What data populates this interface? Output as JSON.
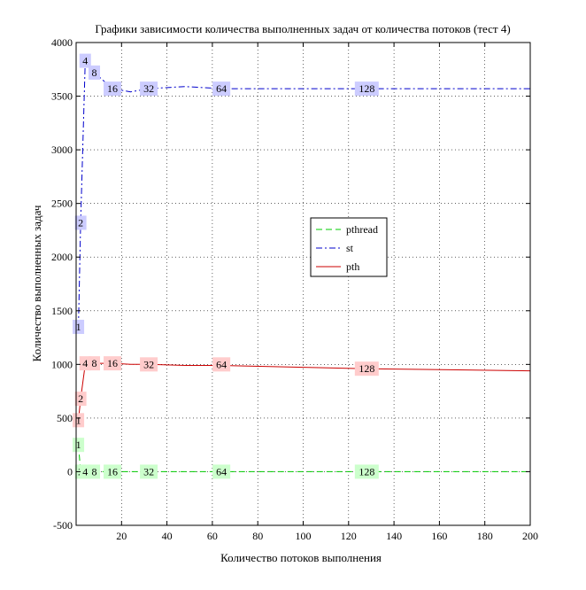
{
  "chart_data": {
    "type": "line",
    "title": "Графики зависимости количества выполненных задач от количества потоков (тест 4)",
    "xlabel": "Количество потоков выполнения",
    "ylabel": "Количество выполненных задач",
    "xlim": [
      0,
      200
    ],
    "ylim": [
      -500,
      4000
    ],
    "xticks": [
      20,
      40,
      60,
      80,
      100,
      120,
      140,
      160,
      180,
      200
    ],
    "yticks": [
      -500,
      0,
      500,
      1000,
      1500,
      2000,
      2500,
      3000,
      3500,
      4000
    ],
    "xtick_labels": [
      "20",
      "40",
      "60",
      "80",
      "100",
      "120",
      "140",
      "160",
      "180",
      "200"
    ],
    "ytick_labels": [
      "-500",
      "0",
      "500",
      "1000",
      "1500",
      "2000",
      "2500",
      "3000",
      "3500",
      "4000"
    ],
    "grid": true,
    "legend_position": "center-right",
    "series": [
      {
        "name": "pthread",
        "color": "#00cc00",
        "label_bg": "#ccffcc",
        "style": "dashed",
        "x": [
          1,
          2,
          4,
          8,
          16,
          32,
          64,
          128,
          200
        ],
        "y": [
          250,
          0,
          0,
          0,
          0,
          0,
          0,
          0,
          0
        ],
        "labels": [
          {
            "x": 1,
            "y": 250,
            "text": "1"
          },
          {
            "x": 2,
            "y": 0,
            "text": "2"
          },
          {
            "x": 4,
            "y": 0,
            "text": "4"
          },
          {
            "x": 8,
            "y": 0,
            "text": "8"
          },
          {
            "x": 16,
            "y": 0,
            "text": "16"
          },
          {
            "x": 32,
            "y": 0,
            "text": "32"
          },
          {
            "x": 64,
            "y": 0,
            "text": "64"
          },
          {
            "x": 128,
            "y": 0,
            "text": "128"
          }
        ]
      },
      {
        "name": "st",
        "color": "#0000cc",
        "label_bg": "#ccccff",
        "style": "dashdot",
        "x": [
          1,
          2,
          4,
          8,
          16,
          24,
          32,
          48,
          64,
          128,
          200
        ],
        "y": [
          1350,
          2320,
          3830,
          3720,
          3570,
          3540,
          3570,
          3590,
          3570,
          3570,
          3570
        ],
        "labels": [
          {
            "x": 1,
            "y": 1350,
            "text": "1"
          },
          {
            "x": 2,
            "y": 2320,
            "text": "2"
          },
          {
            "x": 4,
            "y": 3830,
            "text": "4"
          },
          {
            "x": 8,
            "y": 3720,
            "text": "8"
          },
          {
            "x": 16,
            "y": 3570,
            "text": "16"
          },
          {
            "x": 32,
            "y": 3570,
            "text": "32"
          },
          {
            "x": 64,
            "y": 3570,
            "text": "64"
          },
          {
            "x": 128,
            "y": 3570,
            "text": "128"
          }
        ]
      },
      {
        "name": "pth",
        "color": "#cc0000",
        "label_bg": "#ffcccc",
        "style": "solid",
        "x": [
          1,
          2,
          4,
          8,
          16,
          24,
          32,
          48,
          64,
          128,
          200
        ],
        "y": [
          480,
          680,
          1000,
          1010,
          1010,
          1000,
          1000,
          990,
          990,
          960,
          940
        ],
        "labels": [
          {
            "x": 1,
            "y": 480,
            "text": "1"
          },
          {
            "x": 2,
            "y": 680,
            "text": "2"
          },
          {
            "x": 4,
            "y": 1010,
            "text": "4"
          },
          {
            "x": 8,
            "y": 1010,
            "text": "8"
          },
          {
            "x": 16,
            "y": 1010,
            "text": "16"
          },
          {
            "x": 32,
            "y": 1000,
            "text": "32"
          },
          {
            "x": 64,
            "y": 1000,
            "text": "64"
          },
          {
            "x": 128,
            "y": 960,
            "text": "128"
          }
        ]
      }
    ]
  }
}
